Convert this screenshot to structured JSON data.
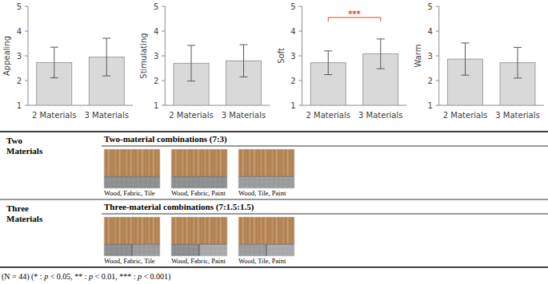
{
  "chart_data": [
    {
      "type": "bar",
      "y_label": "Appealing",
      "categories": [
        "2 Materials",
        "3 Materials"
      ],
      "values": [
        2.73,
        2.95
      ],
      "errors": [
        0.62,
        0.76
      ],
      "color": "#d9d9d9",
      "ylim": [
        1,
        5
      ],
      "yticks": [
        1,
        2,
        3,
        4,
        5
      ],
      "grid": false,
      "annotations": []
    },
    {
      "type": "bar",
      "y_label": "Stimulating",
      "categories": [
        "2 Materials",
        "3 Materials"
      ],
      "values": [
        2.7,
        2.8
      ],
      "errors": [
        0.72,
        0.65
      ],
      "color": "#d9d9d9",
      "ylim": [
        1,
        5
      ],
      "yticks": [
        1,
        2,
        3,
        4,
        5
      ],
      "grid": false,
      "annotations": []
    },
    {
      "type": "bar",
      "y_label": "Soft",
      "categories": [
        "2 Materials",
        "3 Materials"
      ],
      "values": [
        2.72,
        3.08
      ],
      "errors": [
        0.48,
        0.6
      ],
      "color": "#d9d9d9",
      "ylim": [
        1,
        5
      ],
      "yticks": [
        1,
        2,
        3,
        4,
        5
      ],
      "grid": false,
      "annotations": [
        {
          "text": "***",
          "between": [
            "2 Materials",
            "3 Materials"
          ],
          "color": "#e8402a"
        }
      ]
    },
    {
      "type": "bar",
      "y_label": "Warm",
      "categories": [
        "2 Materials",
        "3 Materials"
      ],
      "values": [
        2.87,
        2.72
      ],
      "errors": [
        0.65,
        0.62
      ],
      "color": "#d9d9d9",
      "ylim": [
        1,
        5
      ],
      "yticks": [
        1,
        2,
        3,
        4,
        5
      ],
      "grid": false,
      "annotations": []
    }
  ],
  "table": {
    "rows": [
      {
        "label": "Two Materials",
        "heading": "Two-material combinations (7:3)",
        "items": [
          "Wood, Fabric, Tile",
          "Wood, Fabric, Paint",
          "Wood, Tile, Paint"
        ]
      },
      {
        "label": "Three Materials",
        "heading": "Three-material combinations (7:1.5:1.5)",
        "items": [
          "Wood, Fabric, Tile",
          "Wood, Fabric, Paint",
          "Wood, Tile, Paint"
        ]
      }
    ]
  },
  "note": "(N = 44) (* : p < 0.05, ** : p < 0.01, *** : p < 0.001)"
}
